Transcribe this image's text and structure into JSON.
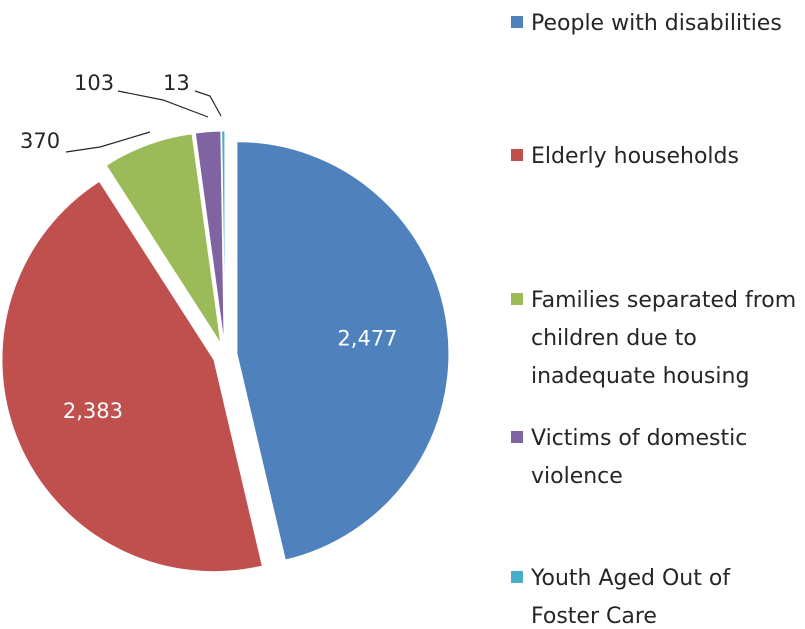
{
  "chart_data": {
    "type": "pie",
    "title": "",
    "categories": [
      "People with disabilities",
      "Elderly households",
      "Families separated from children due to inadequate housing",
      "Victims of domestic violence",
      "Youth Aged Out of Foster Care"
    ],
    "values": [
      2477,
      2383,
      370,
      103,
      13
    ],
    "data_labels": [
      "2,477",
      "2,383",
      "370",
      "103",
      "13"
    ],
    "colors": [
      "#4f81bd",
      "#c0504d",
      "#9bbb59",
      "#8064a2",
      "#4bacc6"
    ],
    "legend": {
      "position": "right",
      "entries": [
        [
          "People with disabilities"
        ],
        [
          "Elderly households"
        ],
        [
          "Families separated from",
          "children due to",
          "inadequate housing"
        ],
        [
          "Victims of domestic",
          "violence"
        ],
        [
          "Youth Aged Out of",
          "Foster Care"
        ]
      ]
    },
    "exploded": true,
    "start_angle_deg": 0,
    "direction": "clockwise"
  }
}
